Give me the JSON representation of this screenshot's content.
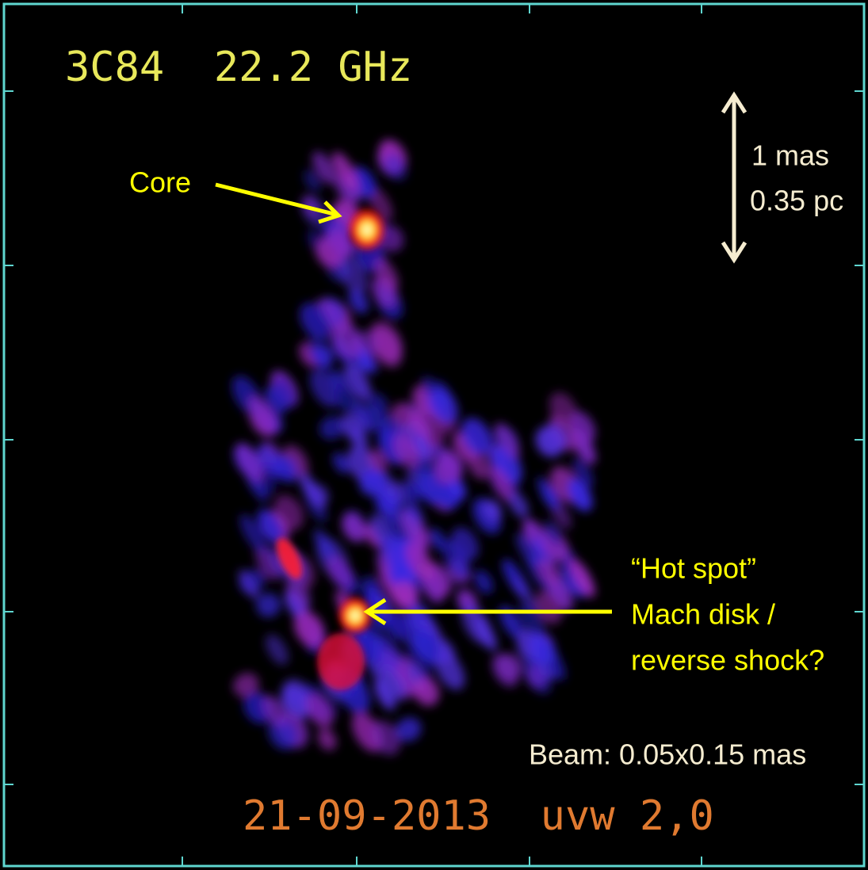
{
  "header": {
    "title": "3C84  22.2 GHz"
  },
  "annotations": {
    "core": "Core",
    "scale": [
      "1 mas",
      "0.35 pc"
    ],
    "hot_spot": [
      "“Hot spot”",
      "Mach disk /",
      "reverse shock?"
    ],
    "beam": "Beam: 0.05x0.15 mas"
  },
  "footer": {
    "caption": "21-09-2013  uvw 2,0"
  }
}
